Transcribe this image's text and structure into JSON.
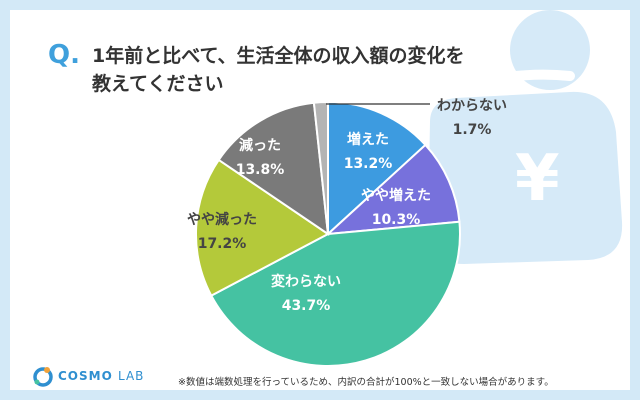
{
  "question_mark": "Q.",
  "title_line1": "1年前と比べて、生活全体の収入額の変化を",
  "title_line2": "教えてください",
  "note": "※数値は端数処理を行っているため、内訳の合計が100%と一致しない場合があります。",
  "logo": {
    "main": "COSMO",
    "sub": "LAB"
  },
  "colors": {
    "frame": "#d3e9f7",
    "accent": "#3fa0dc",
    "deco": "#cfe6f6"
  },
  "chart_data": {
    "type": "pie",
    "title": "1年前と比べて、生活全体の収入額の変化を教えてください",
    "unit": "%",
    "start": "12 o'clock",
    "direction": "clockwise",
    "slices": [
      {
        "label": "増えた",
        "value": 13.2,
        "value_text": "13.2%",
        "color": "#3d9be0"
      },
      {
        "label": "やや増えた",
        "value": 10.3,
        "value_text": "10.3%",
        "color": "#7771dc"
      },
      {
        "label": "変わらない",
        "value": 43.7,
        "value_text": "43.7%",
        "color": "#45c2a2"
      },
      {
        "label": "やや減った",
        "value": 17.2,
        "value_text": "17.2%",
        "color": "#b4c93a"
      },
      {
        "label": "減った",
        "value": 13.8,
        "value_text": "13.8%",
        "color": "#7a7a7a"
      },
      {
        "label": "わからない",
        "value": 1.7,
        "value_text": "1.7%",
        "color": "#b4b4b4"
      }
    ]
  }
}
